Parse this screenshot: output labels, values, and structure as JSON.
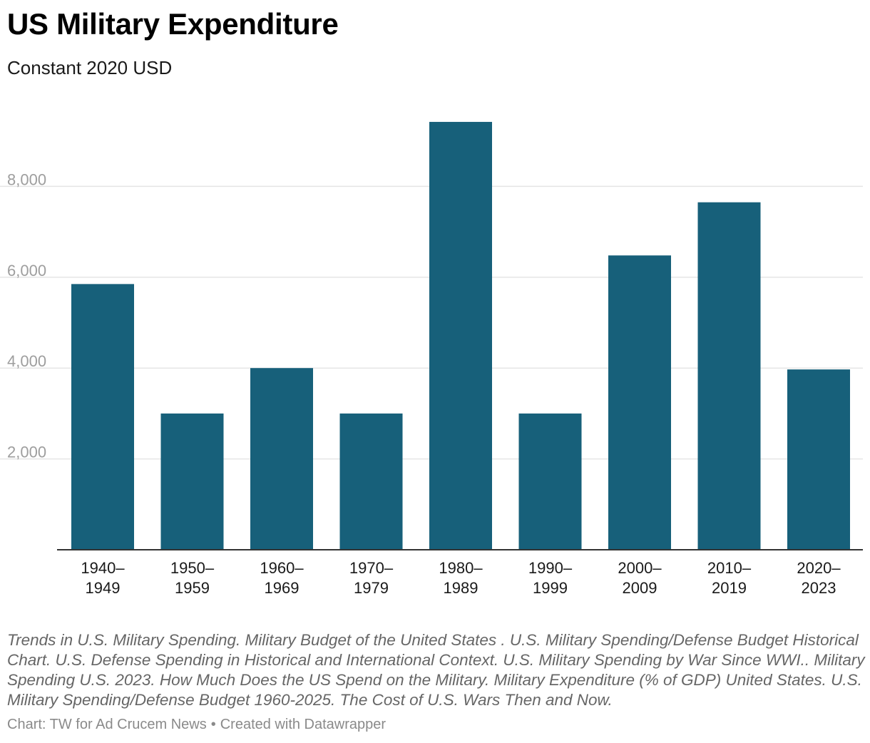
{
  "header": {
    "title": "US Military Expenditure",
    "subtitle": "Constant 2020 USD"
  },
  "chart_data": {
    "type": "bar",
    "title": "US Military Expenditure",
    "subtitle": "Constant 2020 USD",
    "categories": [
      [
        "1940–",
        "1949"
      ],
      [
        "1950–",
        "1959"
      ],
      [
        "1960–",
        "1969"
      ],
      [
        "1970–",
        "1979"
      ],
      [
        "1980–",
        "1989"
      ],
      [
        "1990–",
        "1999"
      ],
      [
        "2000–",
        "2009"
      ],
      [
        "2010–",
        "2019"
      ],
      [
        "2020–",
        "2023"
      ]
    ],
    "values": [
      5850,
      3000,
      4000,
      3000,
      9420,
      3000,
      6480,
      7650,
      3970
    ],
    "yticks": [
      2000,
      4000,
      6000,
      8000
    ],
    "ytick_labels": [
      "2,000",
      "4,000",
      "6,000",
      "8,000"
    ],
    "ylim": [
      0,
      10000
    ],
    "xlabel": "",
    "ylabel": "",
    "grid": true,
    "legend": "none",
    "colors": {
      "bar": "#17607a",
      "grid": "#e5e5e5",
      "axis": "#333333",
      "tick_label": "#9e9e9e"
    }
  },
  "footer": {
    "notes": "Trends in U.S. Military Spending. Military Budget of the United States . U.S. Military Spending/Defense Budget Historical Chart. U.S. Defense Spending in Historical and International Context.  U.S. Military Spending by War Since WWI.. Military Spending U.S. 2023. How Much Does the US Spend on the Military. Military Expenditure (% of GDP) United States. U.S. Military Spending/Defense Budget 1960-2025. The Cost of U.S. Wars Then and Now.",
    "credit": "Chart: TW for Ad Crucem News",
    "separator": "•",
    "created_with": "Created with Datawrapper"
  }
}
